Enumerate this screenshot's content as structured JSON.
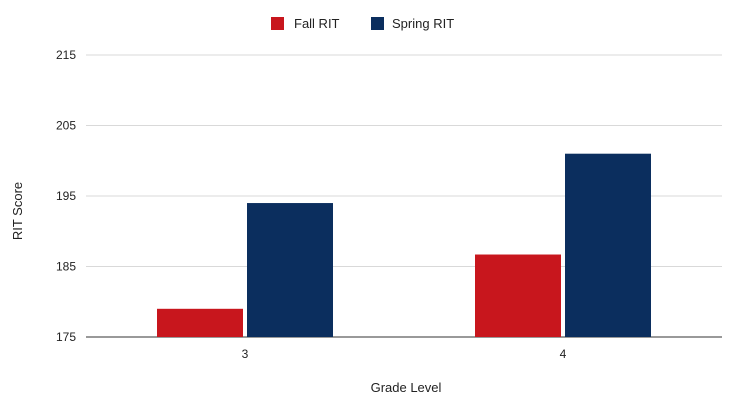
{
  "chart_data": {
    "type": "bar",
    "title": "",
    "xlabel": "Grade Level",
    "ylabel": "RIT Score",
    "categories": [
      "3",
      "4"
    ],
    "series": [
      {
        "name": "Fall RIT",
        "values": [
          179,
          186.7
        ],
        "color": "#c8161d"
      },
      {
        "name": "Spring RIT",
        "values": [
          194,
          201
        ],
        "color": "#0b2e5e"
      }
    ],
    "ylim": [
      175,
      215
    ],
    "yticks": [
      "175",
      "185",
      "195",
      "205",
      "215"
    ],
    "grid": true,
    "legend_position": "top-center"
  }
}
